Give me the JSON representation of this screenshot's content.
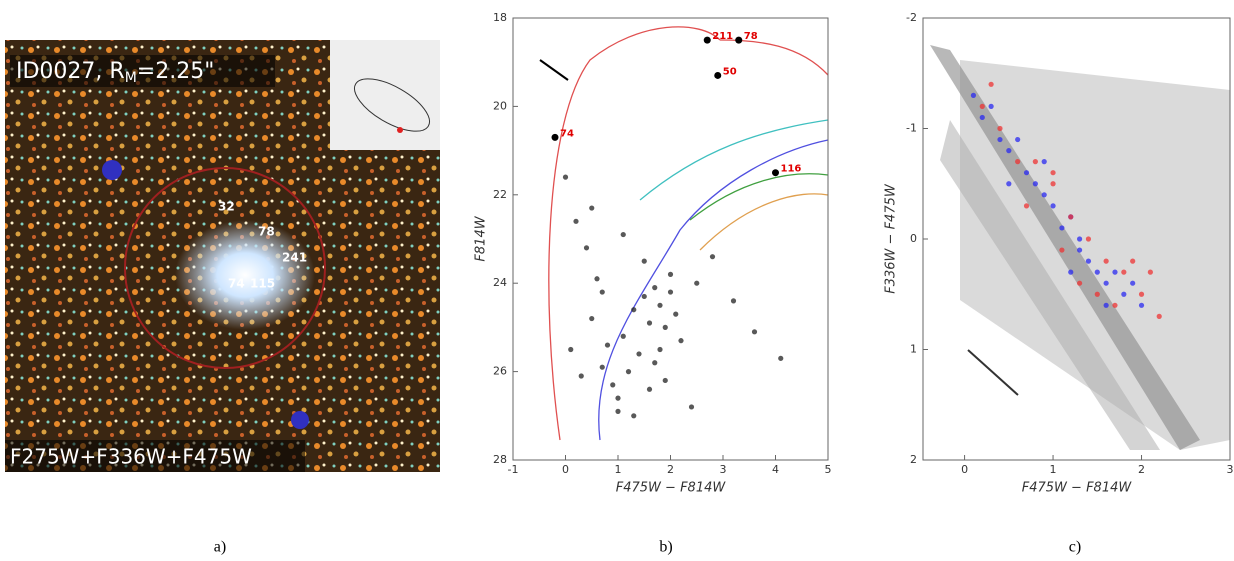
{
  "panel_a": {
    "label": "ID0027, R",
    "label_sub": "M",
    "label_tail": "=2.25\"",
    "filters": "F275W+F336W+F475W",
    "stars": [
      "32",
      "78",
      "241",
      "74",
      "115"
    ],
    "caption": "a)"
  },
  "chart_data": [
    {
      "type": "scatter",
      "xlabel": "F475W − F814W",
      "ylabel": "F814W",
      "xlim": [
        -1,
        5
      ],
      "ylim": [
        18,
        28
      ],
      "y_inverted": true,
      "xticks": [
        -1,
        0,
        1,
        2,
        3,
        4,
        5
      ],
      "yticks": [
        18,
        20,
        22,
        24,
        26,
        28
      ],
      "series": [
        {
          "color": "#222222",
          "x": [
            0.1,
            0.3,
            0.5,
            0.7,
            0.9,
            1.1,
            1.3,
            1.5,
            1.6,
            1.7,
            1.8,
            1.9,
            2.0,
            2.1,
            1.4,
            1.2,
            1.0,
            0.8,
            0.6,
            0.4,
            0.2,
            1.5,
            1.7,
            1.9,
            2.2,
            2.5,
            2.8,
            3.2,
            3.6,
            4.1,
            0.0,
            0.5,
            1.0,
            1.6,
            1.8,
            2.0,
            1.3,
            1.1,
            0.7,
            2.4
          ],
          "y": [
            25.5,
            26.1,
            24.8,
            25.9,
            26.3,
            25.2,
            24.6,
            24.3,
            24.9,
            24.1,
            24.5,
            25.0,
            24.2,
            24.7,
            25.6,
            26.0,
            26.6,
            25.4,
            23.9,
            23.2,
            22.6,
            23.5,
            25.8,
            26.2,
            25.3,
            24.0,
            23.4,
            24.4,
            25.1,
            25.7,
            21.6,
            22.3,
            26.9,
            26.4,
            25.5,
            23.8,
            27.0,
            22.9,
            24.2,
            26.8
          ]
        }
      ],
      "labeled_points": {
        "color": "#000000",
        "label_color": "#e00000",
        "x": [
          2.7,
          3.3,
          2.9,
          -0.2,
          4.0
        ],
        "y": [
          18.5,
          18.5,
          19.3,
          20.7,
          21.5
        ],
        "labels": [
          "211",
          "78",
          "50",
          "74",
          "116"
        ]
      },
      "caption": "b)"
    },
    {
      "type": "scatter",
      "xlabel": "F475W − F814W",
      "ylabel": "F336W − F475W",
      "xlim": [
        -0.47,
        3
      ],
      "ylim": [
        -2,
        2
      ],
      "y_inverted": true,
      "xticks": [
        0,
        1,
        2,
        3
      ],
      "yticks": [
        -2,
        -1,
        0,
        1,
        2
      ],
      "series": [
        {
          "color": "#2a2af0",
          "x": [
            0.1,
            0.2,
            0.3,
            0.4,
            0.5,
            0.6,
            0.7,
            0.8,
            0.9,
            1.0,
            1.1,
            1.2,
            1.3,
            1.4,
            1.5,
            1.6,
            1.7,
            1.8,
            1.9,
            2.0,
            0.5,
            0.9,
            1.3,
            1.6,
            1.2
          ],
          "y": [
            -1.3,
            -1.1,
            -1.2,
            -0.9,
            -0.8,
            -0.9,
            -0.6,
            -0.5,
            -0.4,
            -0.3,
            -0.1,
            -0.2,
            0.1,
            0.2,
            0.3,
            0.4,
            0.3,
            0.5,
            0.4,
            0.6,
            -0.5,
            -0.7,
            0.0,
            0.6,
            0.3
          ]
        },
        {
          "color": "#ee3333",
          "x": [
            0.2,
            0.4,
            0.6,
            0.8,
            1.0,
            1.2,
            1.4,
            1.6,
            1.8,
            2.0,
            2.2,
            1.1,
            1.5,
            1.9,
            0.3,
            0.7,
            1.3,
            1.7,
            2.1,
            1.0
          ],
          "y": [
            -1.2,
            -1.0,
            -0.7,
            -0.7,
            -0.5,
            -0.2,
            0.0,
            0.2,
            0.3,
            0.5,
            0.7,
            0.1,
            0.5,
            0.2,
            -1.4,
            -0.3,
            0.4,
            0.6,
            0.3,
            -0.6
          ]
        }
      ],
      "caption": "c)"
    }
  ]
}
